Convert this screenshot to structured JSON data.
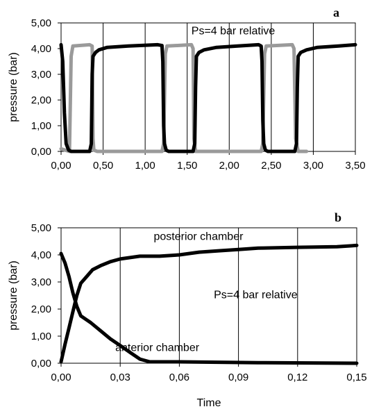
{
  "chart_data": [
    {
      "id": "a",
      "type": "line",
      "panel_label": "a",
      "ylabel": "pressure (bar)",
      "xlabel": "",
      "xlim": [
        0,
        3.5
      ],
      "ylim": [
        0,
        5
      ],
      "x_ticks": [
        "0,00",
        "0,50",
        "1,00",
        "1,50",
        "2,00",
        "2,50",
        "3,00",
        "3,50"
      ],
      "y_ticks": [
        "0,00",
        "1,00",
        "2,00",
        "3,00",
        "4,00",
        "5,00"
      ],
      "grid": "vertical",
      "annotations": [
        {
          "text": "Ps=4 bar relative",
          "x": 1.55,
          "y": 4.55
        }
      ],
      "series": [
        {
          "color": "#9a9a9a",
          "values": [
            [
              0,
              0.1
            ],
            [
              0.05,
              0.05
            ],
            [
              0.1,
              0.0
            ],
            [
              0.12,
              3.7
            ],
            [
              0.14,
              4.1
            ],
            [
              0.34,
              4.15
            ],
            [
              0.37,
              4.1
            ],
            [
              0.38,
              0.5
            ],
            [
              0.39,
              0.05
            ],
            [
              0.43,
              0.0
            ],
            [
              1.2,
              0.0
            ],
            [
              1.22,
              0.3
            ],
            [
              1.24,
              3.8
            ],
            [
              1.26,
              4.1
            ],
            [
              1.55,
              4.15
            ],
            [
              1.57,
              4.0
            ],
            [
              1.58,
              0.5
            ],
            [
              1.6,
              0.0
            ],
            [
              2.38,
              0.0
            ],
            [
              2.4,
              0.3
            ],
            [
              2.42,
              3.8
            ],
            [
              2.44,
              4.1
            ],
            [
              2.75,
              4.15
            ],
            [
              2.77,
              4.0
            ],
            [
              2.79,
              0.5
            ],
            [
              2.82,
              0.0
            ],
            [
              2.92,
              0.0
            ]
          ]
        },
        {
          "color": "#000000",
          "values": [
            [
              0,
              4.15
            ],
            [
              0.02,
              3.5
            ],
            [
              0.04,
              1.5
            ],
            [
              0.06,
              0.3
            ],
            [
              0.09,
              0.05
            ],
            [
              0.12,
              0.0
            ],
            [
              0.34,
              0.0
            ],
            [
              0.36,
              0.3
            ],
            [
              0.37,
              3.0
            ],
            [
              0.38,
              3.7
            ],
            [
              0.41,
              3.85
            ],
            [
              0.45,
              3.95
            ],
            [
              0.55,
              4.05
            ],
            [
              0.8,
              4.1
            ],
            [
              1.15,
              4.15
            ],
            [
              1.2,
              4.12
            ],
            [
              1.21,
              3.5
            ],
            [
              1.22,
              1.0
            ],
            [
              1.23,
              0.3
            ],
            [
              1.25,
              0.05
            ],
            [
              1.28,
              0.0
            ],
            [
              1.57,
              0.0
            ],
            [
              1.59,
              0.3
            ],
            [
              1.6,
              2.5
            ],
            [
              1.61,
              3.7
            ],
            [
              1.64,
              3.85
            ],
            [
              1.7,
              3.95
            ],
            [
              1.85,
              4.05
            ],
            [
              2.1,
              4.1
            ],
            [
              2.35,
              4.15
            ],
            [
              2.38,
              4.1
            ],
            [
              2.39,
              3.5
            ],
            [
              2.4,
              1.2
            ],
            [
              2.41,
              0.3
            ],
            [
              2.43,
              0.05
            ],
            [
              2.46,
              0.0
            ],
            [
              2.78,
              0.0
            ],
            [
              2.8,
              0.3
            ],
            [
              2.81,
              2.5
            ],
            [
              2.82,
              3.7
            ],
            [
              2.85,
              3.85
            ],
            [
              2.92,
              3.95
            ],
            [
              3.05,
              4.05
            ],
            [
              3.3,
              4.1
            ],
            [
              3.5,
              4.15
            ]
          ]
        }
      ]
    },
    {
      "id": "b",
      "type": "line",
      "panel_label": "b",
      "ylabel": "pressure (bar)",
      "xlabel": "Time",
      "xlim": [
        0,
        0.15
      ],
      "ylim": [
        0,
        5
      ],
      "x_ticks": [
        "0,00",
        "0,03",
        "0,06",
        "0,09",
        "0,12",
        "0,15"
      ],
      "y_ticks": [
        "0,00",
        "1,00",
        "2,00",
        "3,00",
        "4,00",
        "5,00"
      ],
      "grid": "vertical",
      "annotations": [
        {
          "text": "posterior chamber",
          "x": 0.047,
          "y": 4.55
        },
        {
          "text": "Ps=4 bar relative",
          "x": 0.0775,
          "y": 2.4
        },
        {
          "text": "anterior chamber",
          "x": 0.0275,
          "y": 0.45
        }
      ],
      "series": [
        {
          "color": "#000000",
          "values": [
            [
              0,
              0.05
            ],
            [
              0.002,
              0.7
            ],
            [
              0.004,
              1.3
            ],
            [
              0.006,
              1.9
            ],
            [
              0.008,
              2.5
            ],
            [
              0.01,
              2.95
            ],
            [
              0.013,
              3.2
            ],
            [
              0.016,
              3.45
            ],
            [
              0.02,
              3.6
            ],
            [
              0.025,
              3.75
            ],
            [
              0.03,
              3.85
            ],
            [
              0.035,
              3.9
            ],
            [
              0.04,
              3.95
            ],
            [
              0.05,
              3.95
            ],
            [
              0.06,
              4.0
            ],
            [
              0.07,
              4.1
            ],
            [
              0.08,
              4.15
            ],
            [
              0.09,
              4.2
            ],
            [
              0.1,
              4.25
            ],
            [
              0.12,
              4.28
            ],
            [
              0.14,
              4.3
            ],
            [
              0.15,
              4.35
            ]
          ]
        },
        {
          "color": "#000000",
          "values": [
            [
              0,
              4.05
            ],
            [
              0.002,
              3.7
            ],
            [
              0.004,
              3.2
            ],
            [
              0.006,
              2.6
            ],
            [
              0.008,
              2.1
            ],
            [
              0.01,
              1.75
            ],
            [
              0.015,
              1.5
            ],
            [
              0.02,
              1.2
            ],
            [
              0.025,
              0.9
            ],
            [
              0.03,
              0.65
            ],
            [
              0.035,
              0.4
            ],
            [
              0.04,
              0.15
            ],
            [
              0.045,
              0.05
            ],
            [
              0.05,
              0.05
            ],
            [
              0.06,
              0.05
            ],
            [
              0.1,
              0.02
            ],
            [
              0.15,
              0.0
            ]
          ]
        }
      ]
    }
  ]
}
